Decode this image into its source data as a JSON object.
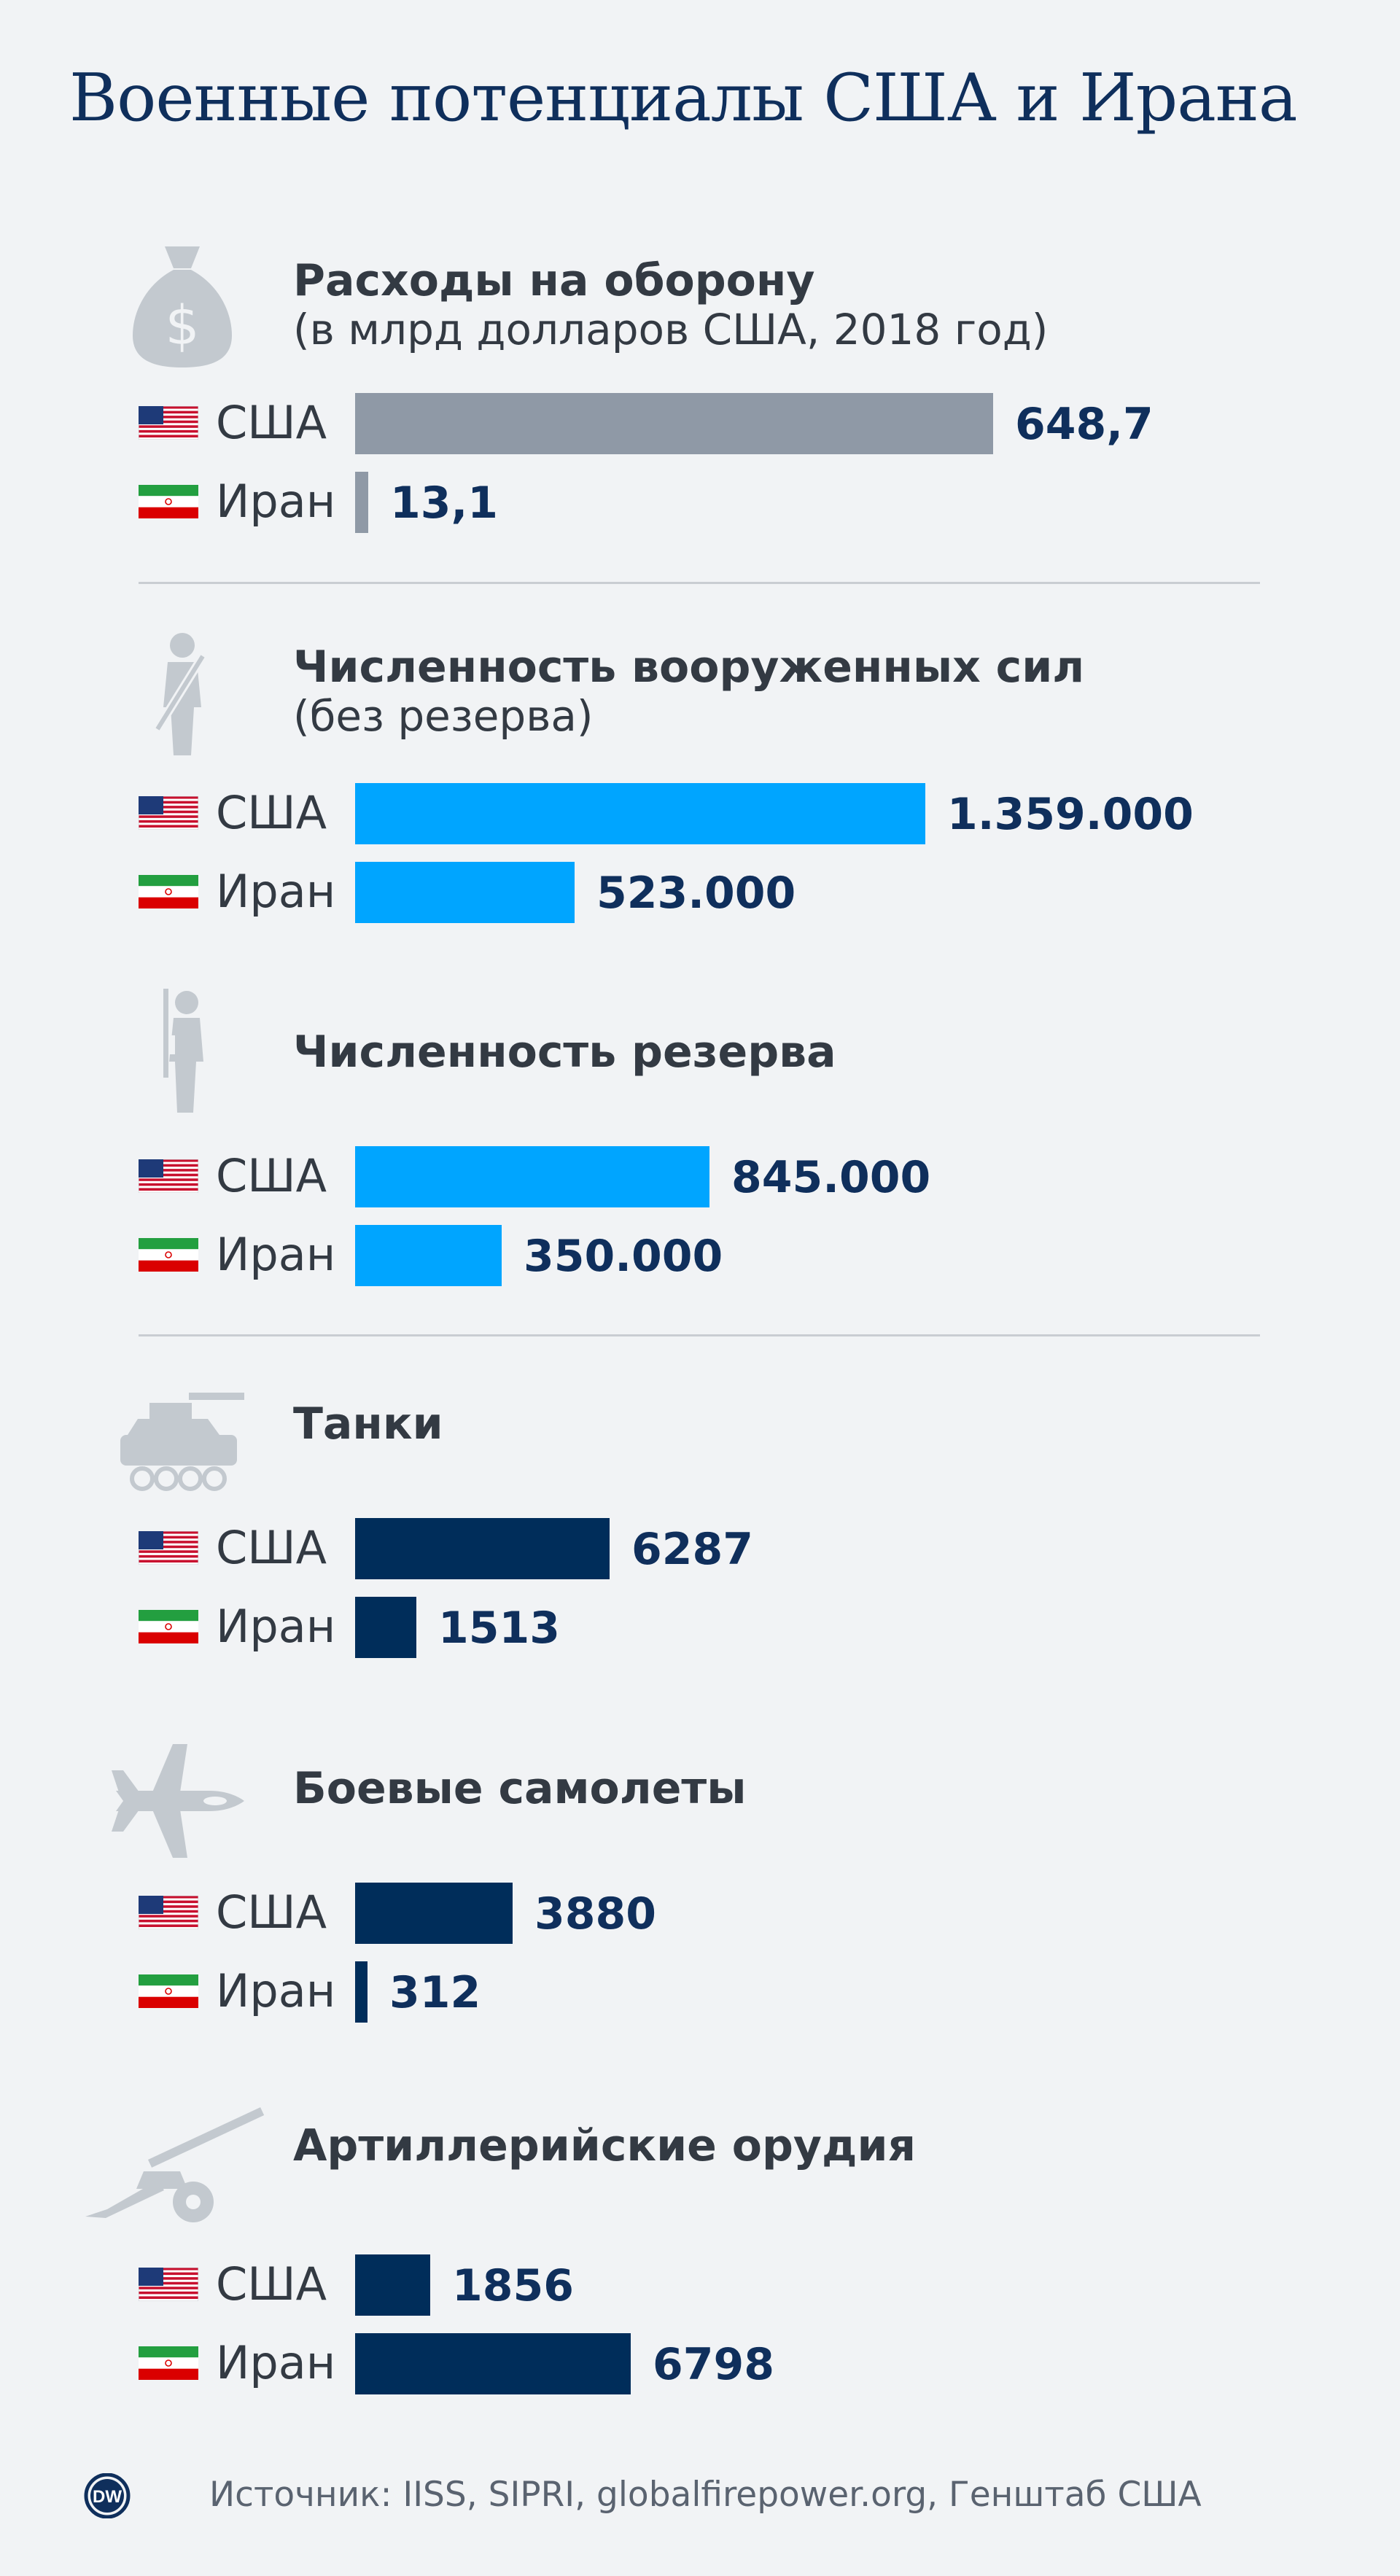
{
  "title": "Военные потенциалы США и Ирана",
  "source": "Источник: IISS, SIPRI, globalfirepower.org, Генштаб США",
  "logo_text": "DW",
  "colors": {
    "background": "#f1f3f5",
    "title": "#0f2f5c",
    "value_text": "#0f2f5c",
    "label_text": "#333a43",
    "icon": "#c3c9cf",
    "bar_spending": "#8f99a6",
    "bar_personnel": "#00a5ff",
    "bar_equipment": "#002d5a"
  },
  "chart_data": [
    {
      "type": "bar",
      "orientation": "horizontal",
      "icon": "money-bag-icon",
      "title": "Расходы на оборону",
      "subtitle": "(в млрд долларов США, 2018 год)",
      "categories": [
        "США",
        "Иран"
      ],
      "values": [
        648.7,
        13.1
      ],
      "value_labels": [
        "648,7",
        "13,1"
      ],
      "unit": "млрд долларов США",
      "color": "#8f99a6"
    },
    {
      "type": "bar",
      "orientation": "horizontal",
      "icon": "soldier-icon",
      "title": "Численность вооруженных сил",
      "subtitle": "(без резерва)",
      "categories": [
        "США",
        "Иран"
      ],
      "values": [
        1359000,
        523000
      ],
      "value_labels": [
        "1.359.000",
        "523.000"
      ],
      "color": "#00a5ff"
    },
    {
      "type": "bar",
      "orientation": "horizontal",
      "icon": "reserve-soldier-icon",
      "title": "Численность резерва",
      "subtitle": "",
      "categories": [
        "США",
        "Иран"
      ],
      "values": [
        845000,
        350000
      ],
      "value_labels": [
        "845.000",
        "350.000"
      ],
      "color": "#00a5ff"
    },
    {
      "type": "bar",
      "orientation": "horizontal",
      "icon": "tank-icon",
      "title": "Танки",
      "subtitle": "",
      "categories": [
        "США",
        "Иран"
      ],
      "values": [
        6287,
        1513
      ],
      "value_labels": [
        "6287",
        "1513"
      ],
      "color": "#002d5a"
    },
    {
      "type": "bar",
      "orientation": "horizontal",
      "icon": "fighter-jet-icon",
      "title": "Боевые самолеты",
      "subtitle": "",
      "categories": [
        "США",
        "Иран"
      ],
      "values": [
        3880,
        312
      ],
      "value_labels": [
        "3880",
        "312"
      ],
      "color": "#002d5a"
    },
    {
      "type": "bar",
      "orientation": "horizontal",
      "icon": "artillery-icon",
      "title": "Артиллерийские орудия",
      "subtitle": "",
      "categories": [
        "США",
        "Иран"
      ],
      "values": [
        1856,
        6798
      ],
      "value_labels": [
        "1856",
        "6798"
      ],
      "color": "#002d5a"
    }
  ]
}
